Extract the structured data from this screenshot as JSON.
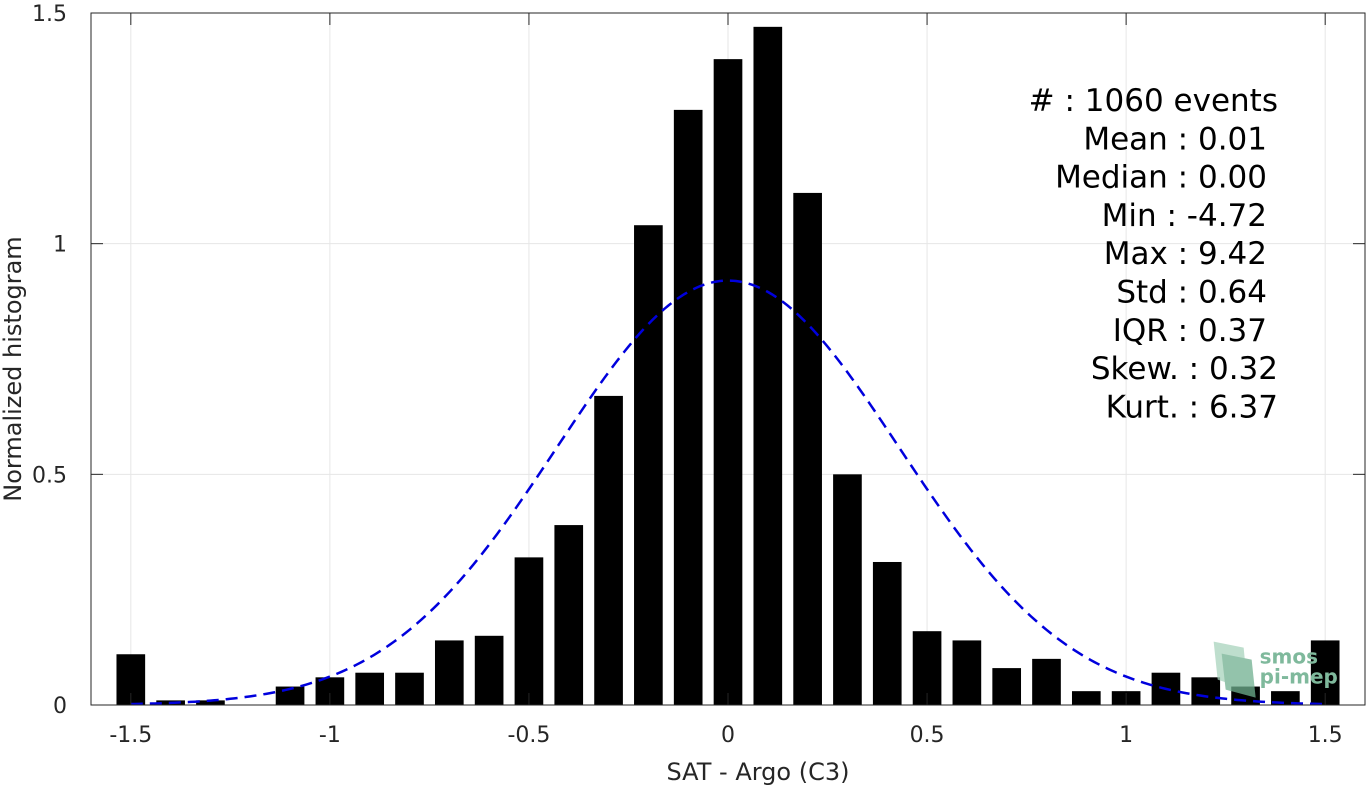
{
  "chart_data": {
    "type": "bar",
    "xlabel": "SAT - Argo (C3)",
    "ylabel": "Normalized histogram",
    "xlim": [
      -1.6,
      1.6
    ],
    "ylim": [
      0,
      1.5
    ],
    "grid": true,
    "xticks": [
      -1.5,
      -1,
      -0.5,
      0,
      0.5,
      1,
      1.5
    ],
    "xtick_labels": [
      "-1.5",
      "-1",
      "-0.5",
      "0",
      "0.5",
      "1",
      "1.5"
    ],
    "yticks": [
      0,
      0.5,
      1,
      1.5
    ],
    "ytick_labels": [
      "0",
      "0.5",
      "1",
      "1.5"
    ],
    "bar_color": "#000000",
    "bars": [
      {
        "x": -1.5,
        "value": 0.11
      },
      {
        "x": -1.4,
        "value": 0.01
      },
      {
        "x": -1.3,
        "value": 0.01
      },
      {
        "x": -1.2,
        "value": 0.0
      },
      {
        "x": -1.1,
        "value": 0.04
      },
      {
        "x": -1.0,
        "value": 0.06
      },
      {
        "x": -0.9,
        "value": 0.07
      },
      {
        "x": -0.8,
        "value": 0.07
      },
      {
        "x": -0.7,
        "value": 0.14
      },
      {
        "x": -0.6,
        "value": 0.15
      },
      {
        "x": -0.5,
        "value": 0.32
      },
      {
        "x": -0.4,
        "value": 0.39
      },
      {
        "x": -0.3,
        "value": 0.67
      },
      {
        "x": -0.2,
        "value": 1.04
      },
      {
        "x": -0.1,
        "value": 1.29
      },
      {
        "x": 0.0,
        "value": 1.4
      },
      {
        "x": 0.1,
        "value": 1.47
      },
      {
        "x": 0.2,
        "value": 1.11
      },
      {
        "x": 0.3,
        "value": 0.5
      },
      {
        "x": 0.4,
        "value": 0.31
      },
      {
        "x": 0.5,
        "value": 0.16
      },
      {
        "x": 0.6,
        "value": 0.14
      },
      {
        "x": 0.7,
        "value": 0.08
      },
      {
        "x": 0.8,
        "value": 0.1
      },
      {
        "x": 0.9,
        "value": 0.03
      },
      {
        "x": 1.0,
        "value": 0.03
      },
      {
        "x": 1.1,
        "value": 0.07
      },
      {
        "x": 1.2,
        "value": 0.06
      },
      {
        "x": 1.3,
        "value": 0.04
      },
      {
        "x": 1.4,
        "value": 0.03
      },
      {
        "x": 1.5,
        "value": 0.14
      }
    ],
    "fit_curve": {
      "style": "dashed",
      "color": "#0000dd",
      "kind": "gaussian",
      "mean": 0.0,
      "std": 0.43,
      "peak": 0.92
    },
    "stats_box": {
      "placement": "top-right",
      "lines": [
        "#  : 1060 events",
        "Mean : 0.01",
        "Median : 0.00",
        "Min : -4.72",
        "Max : 9.42",
        "Std : 0.64",
        "IQR : 0.37",
        "Skew. : 0.32",
        "Kurt. : 6.37"
      ]
    },
    "watermark": {
      "text": [
        "smos",
        "pi-mep"
      ],
      "placement": "bottom-right",
      "color": "#7fb99c"
    }
  }
}
